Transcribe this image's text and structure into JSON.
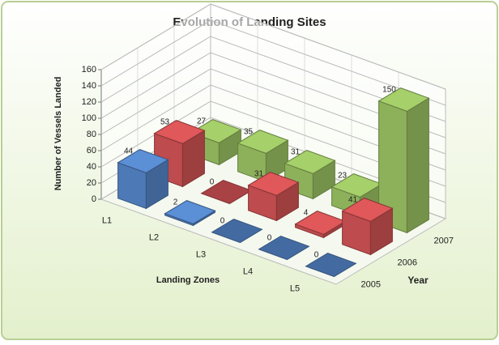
{
  "chart_data": {
    "type": "bar3d",
    "title": "Evolution of Landing Sites",
    "ylabel": "Number of Vessels Landed",
    "xlabel": "Landing Zones",
    "zlabel": "Year",
    "categories": [
      "L1",
      "L2",
      "L3",
      "L4",
      "L5"
    ],
    "series": [
      {
        "name": "2005",
        "color": "#5b8fd6",
        "values": [
          44,
          2,
          0,
          0,
          0
        ]
      },
      {
        "name": "2006",
        "color": "#e0585a",
        "values": [
          53,
          0,
          31,
          4,
          41
        ]
      },
      {
        "name": "2007",
        "color": "#a6d06a",
        "values": [
          27,
          35,
          31,
          23,
          150
        ]
      }
    ],
    "ylim": [
      0,
      160
    ],
    "yticks": [
      0,
      20,
      40,
      60,
      80,
      100,
      120,
      140,
      160
    ],
    "grid": true
  }
}
